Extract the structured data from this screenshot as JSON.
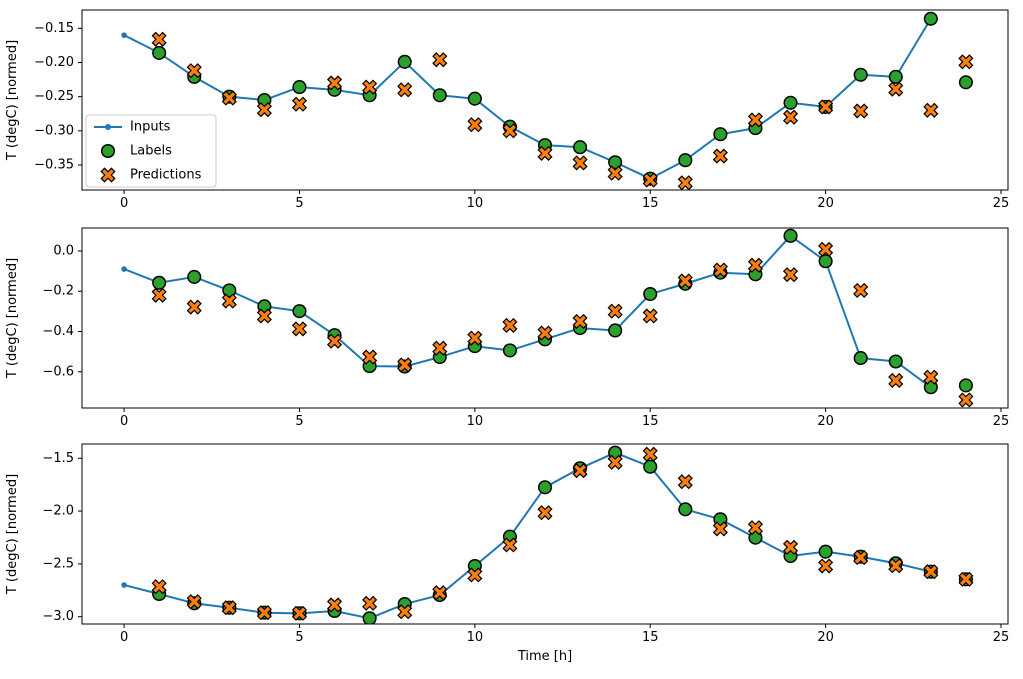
{
  "figure": {
    "xlabel": "Time [h]",
    "ylabel": "T (degC) [normed]",
    "legend": {
      "items": [
        {
          "label": "Inputs",
          "marker": "line-dot"
        },
        {
          "label": "Labels",
          "marker": "circle"
        },
        {
          "label": "Predictions",
          "marker": "x-cross"
        }
      ]
    },
    "colors": {
      "inputs": "#1f77b4",
      "labels": "#2ca02c",
      "predictions": "#ff7f0e",
      "marker_edge": "#000000",
      "spine": "#000000",
      "legend_border": "#cccccc",
      "background": "#ffffff"
    }
  },
  "chart_data": [
    {
      "type": "line",
      "title": "",
      "xlabel": "",
      "ylabel": "T (degC) [normed]",
      "xlim": [
        -1.2,
        25.2
      ],
      "ylim": [
        -0.3866,
        -0.1232
      ],
      "xticks": [
        {
          "v": 0,
          "label": "0"
        },
        {
          "v": 5,
          "label": "5"
        },
        {
          "v": 10,
          "label": "10"
        },
        {
          "v": 15,
          "label": "15"
        },
        {
          "v": 20,
          "label": "20"
        },
        {
          "v": 25,
          "label": "25"
        }
      ],
      "yticks": [
        {
          "v": -0.15,
          "label": "−0.15"
        },
        {
          "v": -0.2,
          "label": "−0.20"
        },
        {
          "v": -0.25,
          "label": "−0.25"
        },
        {
          "v": -0.3,
          "label": "−0.30"
        },
        {
          "v": -0.35,
          "label": "−0.35"
        }
      ],
      "legend": true,
      "series": [
        {
          "name": "Inputs",
          "style": "line-dot",
          "x": [
            0,
            1,
            2,
            3,
            4,
            5,
            6,
            7,
            8,
            9,
            10,
            11,
            12,
            13,
            14,
            15,
            16,
            17,
            18,
            19,
            20,
            21,
            22,
            23
          ],
          "values": [
            -0.16,
            -0.186,
            -0.221,
            -0.25,
            -0.255,
            -0.236,
            -0.24,
            -0.248,
            -0.199,
            -0.248,
            -0.253,
            -0.294,
            -0.321,
            -0.324,
            -0.346,
            -0.37,
            -0.343,
            -0.305,
            -0.296,
            -0.259,
            -0.265,
            -0.218,
            -0.221,
            -0.136
          ]
        },
        {
          "name": "Labels",
          "style": "circle",
          "x": [
            1,
            2,
            3,
            4,
            5,
            6,
            7,
            8,
            9,
            10,
            11,
            12,
            13,
            14,
            15,
            16,
            17,
            18,
            19,
            20,
            21,
            22,
            23,
            24
          ],
          "values": [
            -0.186,
            -0.221,
            -0.25,
            -0.255,
            -0.236,
            -0.24,
            -0.248,
            -0.199,
            -0.248,
            -0.253,
            -0.294,
            -0.321,
            -0.324,
            -0.346,
            -0.37,
            -0.343,
            -0.305,
            -0.296,
            -0.259,
            -0.265,
            -0.218,
            -0.221,
            -0.136,
            -0.229
          ]
        },
        {
          "name": "Predictions",
          "style": "x-cross",
          "x": [
            1,
            2,
            3,
            4,
            5,
            6,
            7,
            8,
            9,
            10,
            11,
            12,
            13,
            14,
            15,
            16,
            17,
            18,
            19,
            20,
            21,
            22,
            23,
            24
          ],
          "values": [
            -0.166,
            -0.212,
            -0.252,
            -0.269,
            -0.261,
            -0.23,
            -0.236,
            -0.24,
            -0.196,
            -0.291,
            -0.3,
            -0.333,
            -0.347,
            -0.362,
            -0.372,
            -0.376,
            -0.337,
            -0.284,
            -0.28,
            -0.265,
            -0.271,
            -0.239,
            -0.27,
            -0.199
          ]
        }
      ]
    },
    {
      "type": "line",
      "title": "",
      "xlabel": "",
      "ylabel": "T (degC) [normed]",
      "xlim": [
        -1.2,
        25.2
      ],
      "ylim": [
        -0.78,
        0.114
      ],
      "xticks": [
        {
          "v": 0,
          "label": "0"
        },
        {
          "v": 5,
          "label": "5"
        },
        {
          "v": 10,
          "label": "10"
        },
        {
          "v": 15,
          "label": "15"
        },
        {
          "v": 20,
          "label": "20"
        },
        {
          "v": 25,
          "label": "25"
        }
      ],
      "yticks": [
        {
          "v": 0.0,
          "label": "0.0"
        },
        {
          "v": -0.2,
          "label": "−0.2"
        },
        {
          "v": -0.4,
          "label": "−0.4"
        },
        {
          "v": -0.6,
          "label": "−0.6"
        }
      ],
      "legend": false,
      "series": [
        {
          "name": "Inputs",
          "style": "line-dot",
          "x": [
            0,
            1,
            2,
            3,
            4,
            5,
            6,
            7,
            8,
            9,
            10,
            11,
            12,
            13,
            14,
            15,
            16,
            17,
            18,
            19,
            20,
            21,
            22,
            23
          ],
          "values": [
            -0.09,
            -0.158,
            -0.129,
            -0.196,
            -0.275,
            -0.299,
            -0.418,
            -0.572,
            -0.574,
            -0.527,
            -0.473,
            -0.494,
            -0.439,
            -0.383,
            -0.395,
            -0.214,
            -0.163,
            -0.108,
            -0.116,
            0.075,
            -0.051,
            -0.532,
            -0.549,
            -0.677
          ]
        },
        {
          "name": "Labels",
          "style": "circle",
          "x": [
            1,
            2,
            3,
            4,
            5,
            6,
            7,
            8,
            9,
            10,
            11,
            12,
            13,
            14,
            15,
            16,
            17,
            18,
            19,
            20,
            21,
            22,
            23,
            24
          ],
          "values": [
            -0.158,
            -0.129,
            -0.196,
            -0.275,
            -0.299,
            -0.418,
            -0.572,
            -0.574,
            -0.527,
            -0.473,
            -0.494,
            -0.439,
            -0.383,
            -0.395,
            -0.214,
            -0.163,
            -0.108,
            -0.116,
            0.075,
            -0.051,
            -0.532,
            -0.549,
            -0.677,
            -0.668
          ]
        },
        {
          "name": "Predictions",
          "style": "x-cross",
          "x": [
            1,
            2,
            3,
            4,
            5,
            6,
            7,
            8,
            9,
            10,
            11,
            12,
            13,
            14,
            15,
            16,
            17,
            18,
            19,
            20,
            21,
            22,
            23,
            24
          ],
          "values": [
            -0.22,
            -0.279,
            -0.249,
            -0.323,
            -0.387,
            -0.448,
            -0.527,
            -0.566,
            -0.483,
            -0.433,
            -0.37,
            -0.408,
            -0.35,
            -0.299,
            -0.323,
            -0.149,
            -0.095,
            -0.071,
            -0.118,
            0.008,
            -0.196,
            -0.643,
            -0.627,
            -0.74
          ]
        }
      ]
    },
    {
      "type": "line",
      "title": "",
      "xlabel": "Time [h]",
      "ylabel": "T (degC) [normed]",
      "xlim": [
        -1.2,
        25.2
      ],
      "ylim": [
        -3.069,
        -1.365
      ],
      "xticks": [
        {
          "v": 0,
          "label": "0"
        },
        {
          "v": 5,
          "label": "5"
        },
        {
          "v": 10,
          "label": "10"
        },
        {
          "v": 15,
          "label": "15"
        },
        {
          "v": 20,
          "label": "20"
        },
        {
          "v": 25,
          "label": "25"
        }
      ],
      "yticks": [
        {
          "v": -1.5,
          "label": "−1.5"
        },
        {
          "v": -2.0,
          "label": "−2.0"
        },
        {
          "v": -2.5,
          "label": "−2.5"
        },
        {
          "v": -3.0,
          "label": "−3.0"
        }
      ],
      "legend": false,
      "series": [
        {
          "name": "Inputs",
          "style": "line-dot",
          "x": [
            0,
            1,
            2,
            3,
            4,
            5,
            6,
            7,
            8,
            9,
            10,
            11,
            12,
            13,
            14,
            15,
            16,
            17,
            18,
            19,
            20,
            21,
            22,
            23
          ],
          "values": [
            -2.7,
            -2.785,
            -2.873,
            -2.915,
            -2.962,
            -2.968,
            -2.946,
            -3.015,
            -2.88,
            -2.795,
            -2.52,
            -2.242,
            -1.775,
            -1.595,
            -1.447,
            -1.58,
            -1.983,
            -2.078,
            -2.252,
            -2.425,
            -2.384,
            -2.432,
            -2.494,
            -2.574
          ]
        },
        {
          "name": "Labels",
          "style": "circle",
          "x": [
            1,
            2,
            3,
            4,
            5,
            6,
            7,
            8,
            9,
            10,
            11,
            12,
            13,
            14,
            15,
            16,
            17,
            18,
            19,
            20,
            21,
            22,
            23,
            24
          ],
          "values": [
            -2.785,
            -2.873,
            -2.915,
            -2.962,
            -2.968,
            -2.946,
            -3.015,
            -2.88,
            -2.795,
            -2.52,
            -2.242,
            -1.775,
            -1.595,
            -1.447,
            -1.58,
            -1.983,
            -2.078,
            -2.252,
            -2.425,
            -2.384,
            -2.432,
            -2.494,
            -2.574,
            -2.646
          ]
        },
        {
          "name": "Predictions",
          "style": "x-cross",
          "x": [
            1,
            2,
            3,
            4,
            5,
            6,
            7,
            8,
            9,
            10,
            11,
            12,
            13,
            14,
            15,
            16,
            17,
            18,
            19,
            20,
            21,
            22,
            23,
            24
          ],
          "values": [
            -2.716,
            -2.858,
            -2.915,
            -2.962,
            -2.968,
            -2.889,
            -2.873,
            -2.953,
            -2.773,
            -2.605,
            -2.321,
            -2.015,
            -1.617,
            -1.538,
            -1.462,
            -1.722,
            -2.169,
            -2.157,
            -2.343,
            -2.52,
            -2.44,
            -2.517,
            -2.574,
            -2.646
          ]
        }
      ]
    }
  ]
}
